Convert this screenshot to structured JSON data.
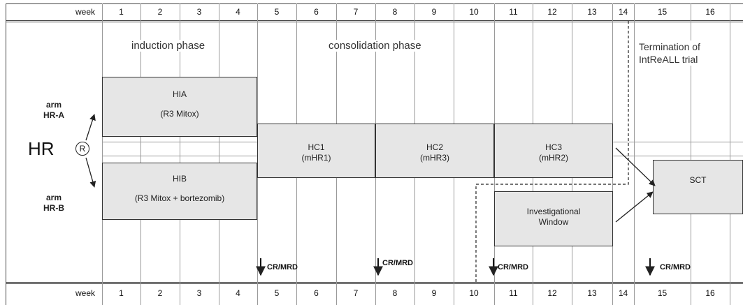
{
  "header": {
    "week_label": "week",
    "weeks": [
      "1",
      "2",
      "3",
      "4",
      "5",
      "6",
      "7",
      "8",
      "9",
      "10",
      "11",
      "12",
      "13",
      "14",
      "15",
      "16"
    ]
  },
  "phases": {
    "induction": "induction phase",
    "consolidation": "consolidation phase"
  },
  "termination": {
    "line1": "Termination of",
    "line2": "IntReALL trial"
  },
  "arms": {
    "a_line1": "arm",
    "a_line2": "HR-A",
    "b_line1": "arm",
    "b_line2": "HR-B"
  },
  "hr_label": "HR",
  "randomization": "R",
  "blocks": {
    "hia": {
      "line1": "HIA",
      "line2": "(R3 Mitox)"
    },
    "hib": {
      "line1": "HIB",
      "line2": "(R3 Mitox + bortezomib)"
    },
    "hc1": {
      "line1": "HC1",
      "line2": "(mHR1)"
    },
    "hc2": {
      "line1": "HC2",
      "line2": "(mHR3)"
    },
    "hc3": {
      "line1": "HC3",
      "line2": "(mHR2)"
    },
    "investigational": {
      "line1": "Investigational",
      "line2": "Window"
    },
    "sct": {
      "line1": "SCT"
    }
  },
  "crmrd": [
    "CR/MRD",
    "CR/MRD",
    "CR/MRD",
    "CR/MRD"
  ]
}
